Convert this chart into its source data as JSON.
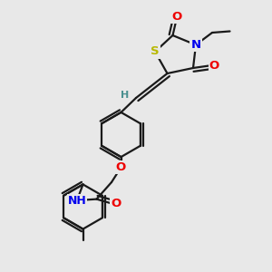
{
  "bg_color": "#e8e8e8",
  "bond_color": "#1a1a1a",
  "bond_width": 1.6,
  "atom_colors": {
    "S": "#b8b800",
    "N": "#0000ee",
    "O": "#ee0000",
    "H": "#4a9090",
    "C": "#1a1a1a"
  },
  "font_size_atom": 9.5,
  "font_size_h": 8.0,
  "dbo": 0.13
}
